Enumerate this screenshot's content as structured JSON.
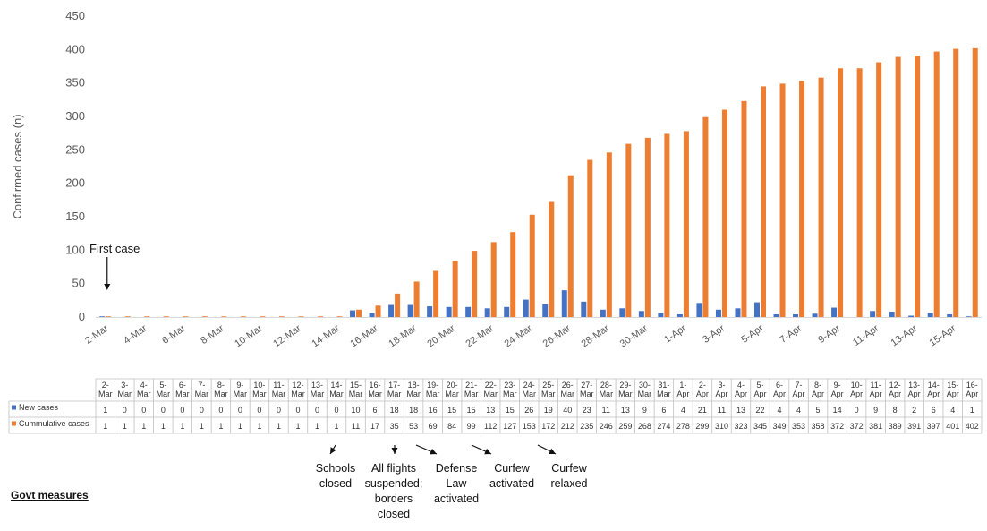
{
  "chart_data": {
    "type": "bar",
    "ylabel": "Confirmed cases (n)",
    "ylim": [
      0,
      450
    ],
    "yticks": [
      0,
      50,
      100,
      150,
      200,
      250,
      300,
      350,
      400,
      450
    ],
    "categories": [
      "2-Mar",
      "3-Mar",
      "4-Mar",
      "5-Mar",
      "6-Mar",
      "7-Mar",
      "8-Mar",
      "9-Mar",
      "10-Mar",
      "11-Mar",
      "12-Mar",
      "13-Mar",
      "14-Mar",
      "15-Mar",
      "16-Mar",
      "17-Mar",
      "18-Mar",
      "19-Mar",
      "20-Mar",
      "21-Mar",
      "22-Mar",
      "23-Mar",
      "24-Mar",
      "25-Mar",
      "26-Mar",
      "27-Mar",
      "28-Mar",
      "29-Mar",
      "30-Mar",
      "31-Mar",
      "1-Apr",
      "2-Apr",
      "3-Apr",
      "4-Apr",
      "5-Apr",
      "6-Apr",
      "7-Apr",
      "8-Apr",
      "9-Apr",
      "10-Apr",
      "11-Apr",
      "12-Apr",
      "13-Apr",
      "14-Apr",
      "15-Apr",
      "16-Apr"
    ],
    "x_axis_labels": [
      "2-Mar",
      "4-Mar",
      "6-Mar",
      "8-Mar",
      "10-Mar",
      "12-Mar",
      "14-Mar",
      "16-Mar",
      "18-Mar",
      "20-Mar",
      "22-Mar",
      "24-Mar",
      "26-Mar",
      "28-Mar",
      "30-Mar",
      "1-Apr",
      "3-Apr",
      "5-Apr",
      "7-Apr",
      "9-Apr",
      "11-Apr",
      "13-Apr",
      "15-Apr"
    ],
    "table_headers": [
      [
        "2-",
        "Mar"
      ],
      [
        "3-",
        "Mar"
      ],
      [
        "4-",
        "Mar"
      ],
      [
        "5-",
        "Mar"
      ],
      [
        "6-",
        "Mar"
      ],
      [
        "7-",
        "Mar"
      ],
      [
        "8-",
        "Mar"
      ],
      [
        "9-",
        "Mar"
      ],
      [
        "10-",
        "Mar"
      ],
      [
        "11-",
        "Mar"
      ],
      [
        "12-",
        "Mar"
      ],
      [
        "13-",
        "Mar"
      ],
      [
        "14-",
        "Mar"
      ],
      [
        "15-",
        "Mar"
      ],
      [
        "16-",
        "Mar"
      ],
      [
        "17-",
        "Mar"
      ],
      [
        "18-",
        "Mar"
      ],
      [
        "19-",
        "Mar"
      ],
      [
        "20-",
        "Mar"
      ],
      [
        "21-",
        "Mar"
      ],
      [
        "22-",
        "Mar"
      ],
      [
        "23-",
        "Mar"
      ],
      [
        "24-",
        "Mar"
      ],
      [
        "25-",
        "Mar"
      ],
      [
        "26-",
        "Mar"
      ],
      [
        "27-",
        "Mar"
      ],
      [
        "28-",
        "Mar"
      ],
      [
        "29-",
        "Mar"
      ],
      [
        "30-",
        "Mar"
      ],
      [
        "31-",
        "Mar"
      ],
      [
        "1-",
        "Apr"
      ],
      [
        "2-",
        "Apr"
      ],
      [
        "3-",
        "Apr"
      ],
      [
        "4-",
        "Apr"
      ],
      [
        "5-",
        "Apr"
      ],
      [
        "6-",
        "Apr"
      ],
      [
        "7-",
        "Apr"
      ],
      [
        "8-",
        "Apr"
      ],
      [
        "9-",
        "Apr"
      ],
      [
        "10-",
        "Apr"
      ],
      [
        "11-",
        "Apr"
      ],
      [
        "12-",
        "Apr"
      ],
      [
        "13-",
        "Apr"
      ],
      [
        "14-",
        "Apr"
      ],
      [
        "15-",
        "Apr"
      ],
      [
        "16-",
        "Apr"
      ]
    ],
    "series": [
      {
        "name": "New cases",
        "color": "#4472C4",
        "values": [
          1,
          0,
          0,
          0,
          0,
          0,
          0,
          0,
          0,
          0,
          0,
          0,
          0,
          10,
          6,
          18,
          18,
          16,
          15,
          15,
          13,
          15,
          26,
          19,
          40,
          23,
          11,
          13,
          9,
          6,
          4,
          21,
          11,
          13,
          22,
          4,
          4,
          5,
          14,
          0,
          9,
          8,
          2,
          6,
          4,
          1
        ]
      },
      {
        "name": "Cummulative cases",
        "color": "#ED7D31",
        "values": [
          1,
          1,
          1,
          1,
          1,
          1,
          1,
          1,
          1,
          1,
          1,
          1,
          1,
          11,
          17,
          35,
          53,
          69,
          84,
          99,
          112,
          127,
          153,
          172,
          212,
          235,
          246,
          259,
          268,
          274,
          278,
          299,
          310,
          323,
          345,
          349,
          353,
          358,
          372,
          372,
          381,
          389,
          391,
          397,
          401,
          402
        ]
      }
    ],
    "annotations": {
      "first_case": {
        "text": "First case",
        "category": "2-Mar"
      },
      "measures": [
        {
          "category": "15-Mar",
          "lines": [
            "Schools",
            "closed"
          ]
        },
        {
          "category": "17-Mar",
          "lines": [
            "All flights",
            "suspended;",
            "borders",
            "closed"
          ]
        },
        {
          "category": "18-Mar",
          "lines": [
            "Defense",
            "Law",
            "activated"
          ]
        },
        {
          "category": "21-Mar",
          "lines": [
            "Curfew",
            "activated"
          ]
        },
        {
          "category": "25-Mar",
          "lines": [
            "Curfew",
            "relaxed"
          ]
        }
      ]
    },
    "grid": false,
    "legend": "data-table"
  },
  "govt_measures_label": "Govt measures"
}
